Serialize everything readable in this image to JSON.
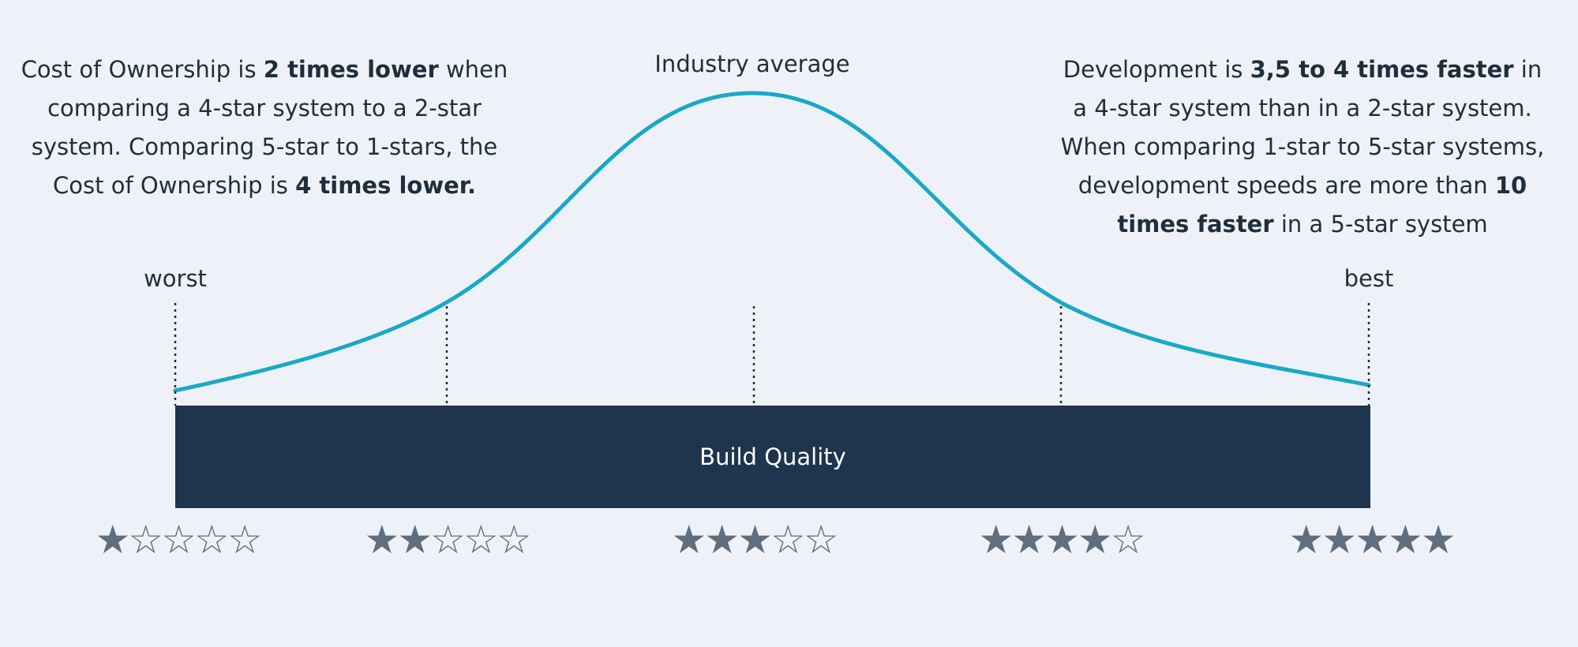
{
  "colors": {
    "background": "#eef2f8",
    "curve": "#19a9c5",
    "bar": "#1f344d",
    "star": "#5f6f80",
    "text": "#1f2d3d"
  },
  "left_note": {
    "parts": [
      {
        "text": "Cost of Ownership is ",
        "bold": false
      },
      {
        "text": "2 times lower",
        "bold": true
      },
      {
        "text": " when comparing a 4-star system to a 2-star system. Comparing 5-star to 1-stars, the Cost of Ownership is ",
        "bold": false
      },
      {
        "text": "4 times lower.",
        "bold": true
      }
    ]
  },
  "right_note": {
    "parts": [
      {
        "text": "Development is ",
        "bold": false
      },
      {
        "text": "3,5 to 4 times faster",
        "bold": true
      },
      {
        "text": " in a 4-star system than in a 2-star system. When comparing 1-star to 5-star systems, development speeds are more than ",
        "bold": false
      },
      {
        "text": "10 times faster",
        "bold": true
      },
      {
        "text": " in a 5-star system",
        "bold": false
      }
    ]
  },
  "curve_labels": {
    "peak": "Industry average",
    "worst": "worst",
    "best": "best"
  },
  "bar": {
    "label": "Build Quality"
  },
  "ratings": [
    {
      "filled": 1,
      "total": 5,
      "icon": "star-icon"
    },
    {
      "filled": 2,
      "total": 5,
      "icon": "star-icon"
    },
    {
      "filled": 3,
      "total": 5,
      "icon": "star-icon"
    },
    {
      "filled": 4,
      "total": 5,
      "icon": "star-icon"
    },
    {
      "filled": 5,
      "total": 5,
      "icon": "star-icon"
    }
  ]
}
